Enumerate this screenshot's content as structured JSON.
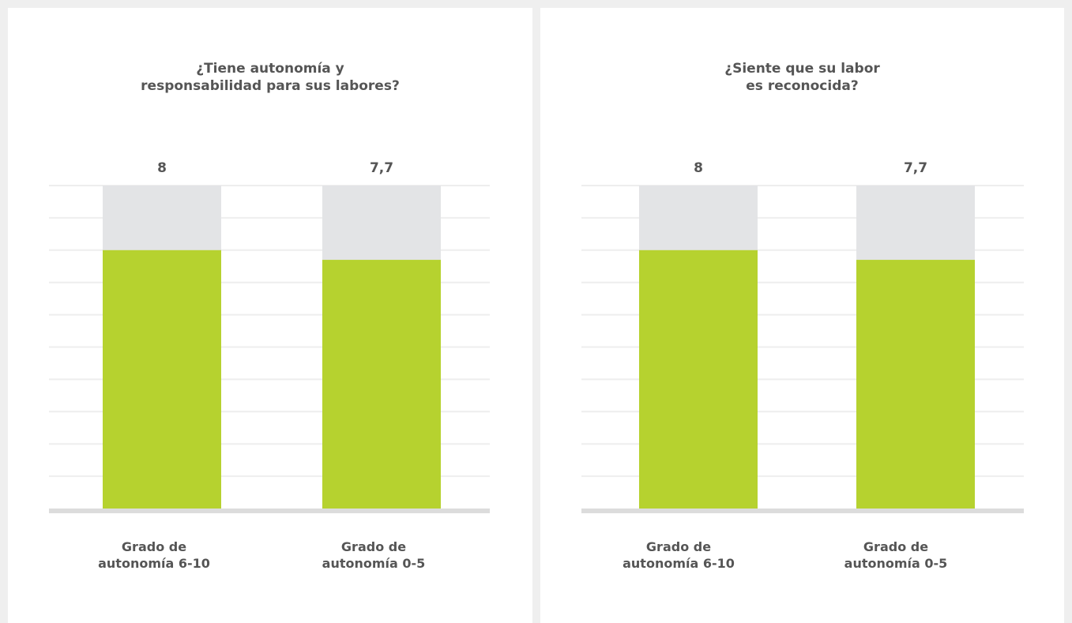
{
  "colors": {
    "bar_fill": "#b6d22f",
    "bar_track": "#e3e4e6",
    "gridline": "#eeeeee",
    "baseline": "#dcdcdc",
    "text": "#555555"
  },
  "chart_data": [
    {
      "type": "bar",
      "title": "¿Tiene autonomía y\nresponsabilidad para sus labores?",
      "categories": [
        "Grado de\nautonomía 6-10",
        "Grado de\nautonomía 0-5"
      ],
      "values": [
        8,
        7.7
      ],
      "value_labels": [
        "8",
        "7,7"
      ],
      "ylim": [
        0,
        10
      ],
      "grid": true
    },
    {
      "type": "bar",
      "title": "¿Siente que su labor\nes reconocida?",
      "categories": [
        "Grado de\nautonomía 6-10",
        "Grado de\nautonomía 0-5"
      ],
      "values": [
        8,
        7.7
      ],
      "value_labels": [
        "8",
        "7,7"
      ],
      "ylim": [
        0,
        10
      ],
      "grid": true
    }
  ]
}
